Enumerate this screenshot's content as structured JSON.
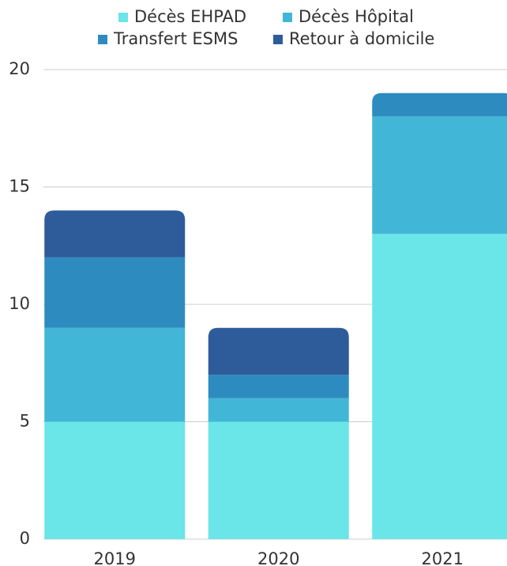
{
  "chart_data": {
    "type": "stacked_bar",
    "categories": [
      "2019",
      "2020",
      "2021"
    ],
    "series": [
      {
        "name": "Décès EHPAD",
        "color": "#6ae5e8",
        "values": [
          5,
          5,
          13
        ]
      },
      {
        "name": "Décès Hôpital",
        "color": "#42b6d6",
        "values": [
          4,
          1,
          5
        ]
      },
      {
        "name": "Transfert ESMS",
        "color": "#2e8bbf",
        "values": [
          3,
          1,
          1
        ]
      },
      {
        "name": "Retour à domicile",
        "color": "#2e5c9a",
        "values": [
          2,
          2,
          0
        ]
      }
    ],
    "ylim": [
      0,
      20
    ],
    "yticks": [
      0,
      5,
      10,
      15,
      20
    ],
    "grid": true,
    "legend": "top"
  }
}
